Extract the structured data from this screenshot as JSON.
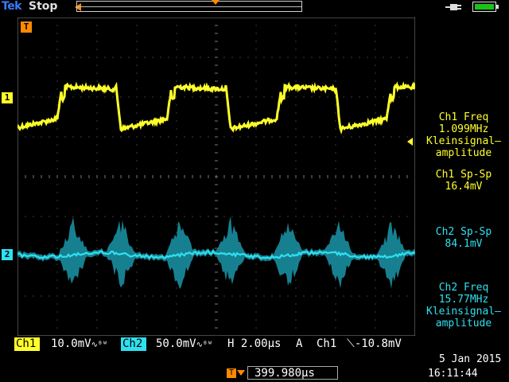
{
  "header": {
    "brand": "Tek",
    "run_status": "Stop"
  },
  "markers": {
    "ch1": "1",
    "ch2": "2",
    "trigger": "T"
  },
  "measurements": [
    {
      "lines": [
        "Ch1 Freq",
        "1.099MHz",
        "Kleinsignal–",
        "amplitude"
      ],
      "color": "#ffff2a"
    },
    {
      "lines": [
        "Ch1 Sp-Sp",
        "16.4mV"
      ],
      "color": "#ffff2a"
    },
    {
      "lines": [
        "Ch2 Sp-Sp",
        "84.1mV"
      ],
      "color": "#2ee0f0"
    },
    {
      "lines": [
        "Ch2 Freq",
        "15.77MHz",
        "Kleinsignal–",
        "amplitude"
      ],
      "color": "#2ee0f0"
    }
  ],
  "status_bar": {
    "ch1_label": "Ch1",
    "ch1_scale": "10.0mV",
    "ch2_label": "Ch2",
    "ch2_scale": "50.0mV",
    "timebase": "H 2.00µs",
    "trigger_mode": "A",
    "trigger_source": "Ch1",
    "trigger_level": "-10.8mV",
    "delay": "399.980µs",
    "date": "5 Jan  2015",
    "time": "16:11:44"
  },
  "colors": {
    "ch1": "#ffff2a",
    "ch2": "#2ee0f0",
    "trigger": "#ff8a00",
    "battery": "#19c319"
  },
  "icons": [
    "plug-icon",
    "battery-icon",
    "trigger-marker-icon"
  ]
}
